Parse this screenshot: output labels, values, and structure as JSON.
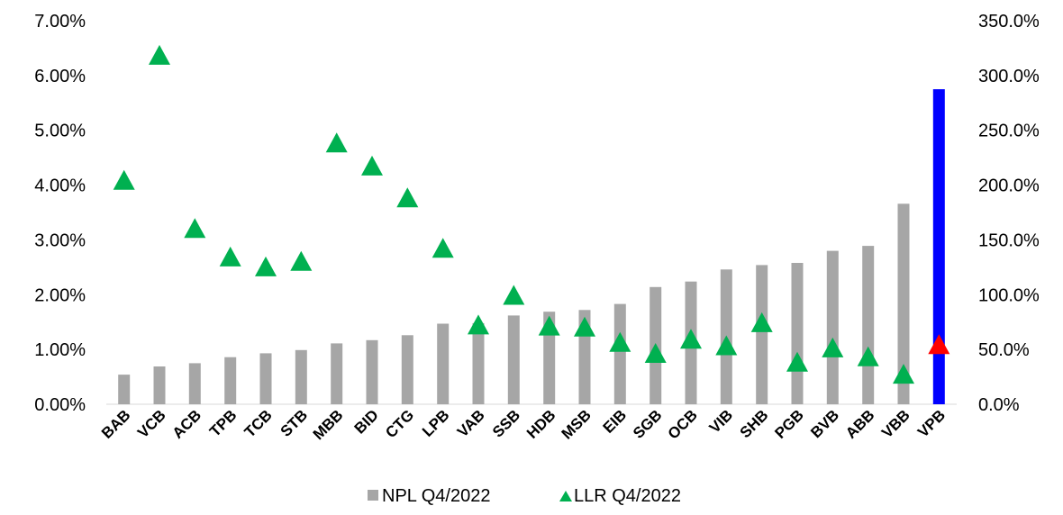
{
  "chart_data": {
    "type": "bar",
    "categories": [
      "BAB",
      "VCB",
      "ACB",
      "TPB",
      "TCB",
      "STB",
      "MBB",
      "BID",
      "CTG",
      "LPB",
      "VAB",
      "SSB",
      "HDB",
      "MSB",
      "EIB",
      "SGB",
      "OCB",
      "VIB",
      "SHB",
      "PGB",
      "BVB",
      "ABB",
      "VBB",
      "VPB"
    ],
    "series": [
      {
        "name": "NPL Q4/2022",
        "kind": "bar",
        "axis": "left",
        "color": "#a6a6a6",
        "highlight_color": "#0000ff",
        "highlight_category": "VPB",
        "values": [
          0.54,
          0.69,
          0.75,
          0.86,
          0.93,
          0.99,
          1.11,
          1.17,
          1.26,
          1.47,
          1.48,
          1.62,
          1.69,
          1.72,
          1.83,
          2.14,
          2.24,
          2.46,
          2.54,
          2.58,
          2.8,
          2.89,
          3.66,
          5.75
        ]
      },
      {
        "name": "LLR Q4/2022",
        "kind": "scatter",
        "marker": "triangle",
        "axis": "right",
        "color": "#00b050",
        "highlight_color": "#ff0000",
        "highlight_category": "VPB",
        "values": [
          204,
          318,
          160,
          134,
          125,
          130,
          238,
          217,
          188,
          142,
          72,
          99,
          71,
          70,
          56,
          46,
          59,
          53,
          74,
          38,
          51,
          43,
          27,
          54
        ]
      }
    ],
    "y_left": {
      "min": 0,
      "max": 7,
      "ticks": [
        "0.00%",
        "1.00%",
        "2.00%",
        "3.00%",
        "4.00%",
        "5.00%",
        "6.00%",
        "7.00%"
      ]
    },
    "y_right": {
      "min": 0,
      "max": 350,
      "ticks": [
        "0.0%",
        "50.0%",
        "100.0%",
        "150.0%",
        "200.0%",
        "250.0%",
        "300.0%",
        "350.0%"
      ]
    },
    "grid": false,
    "legend_position": "bottom-center"
  }
}
